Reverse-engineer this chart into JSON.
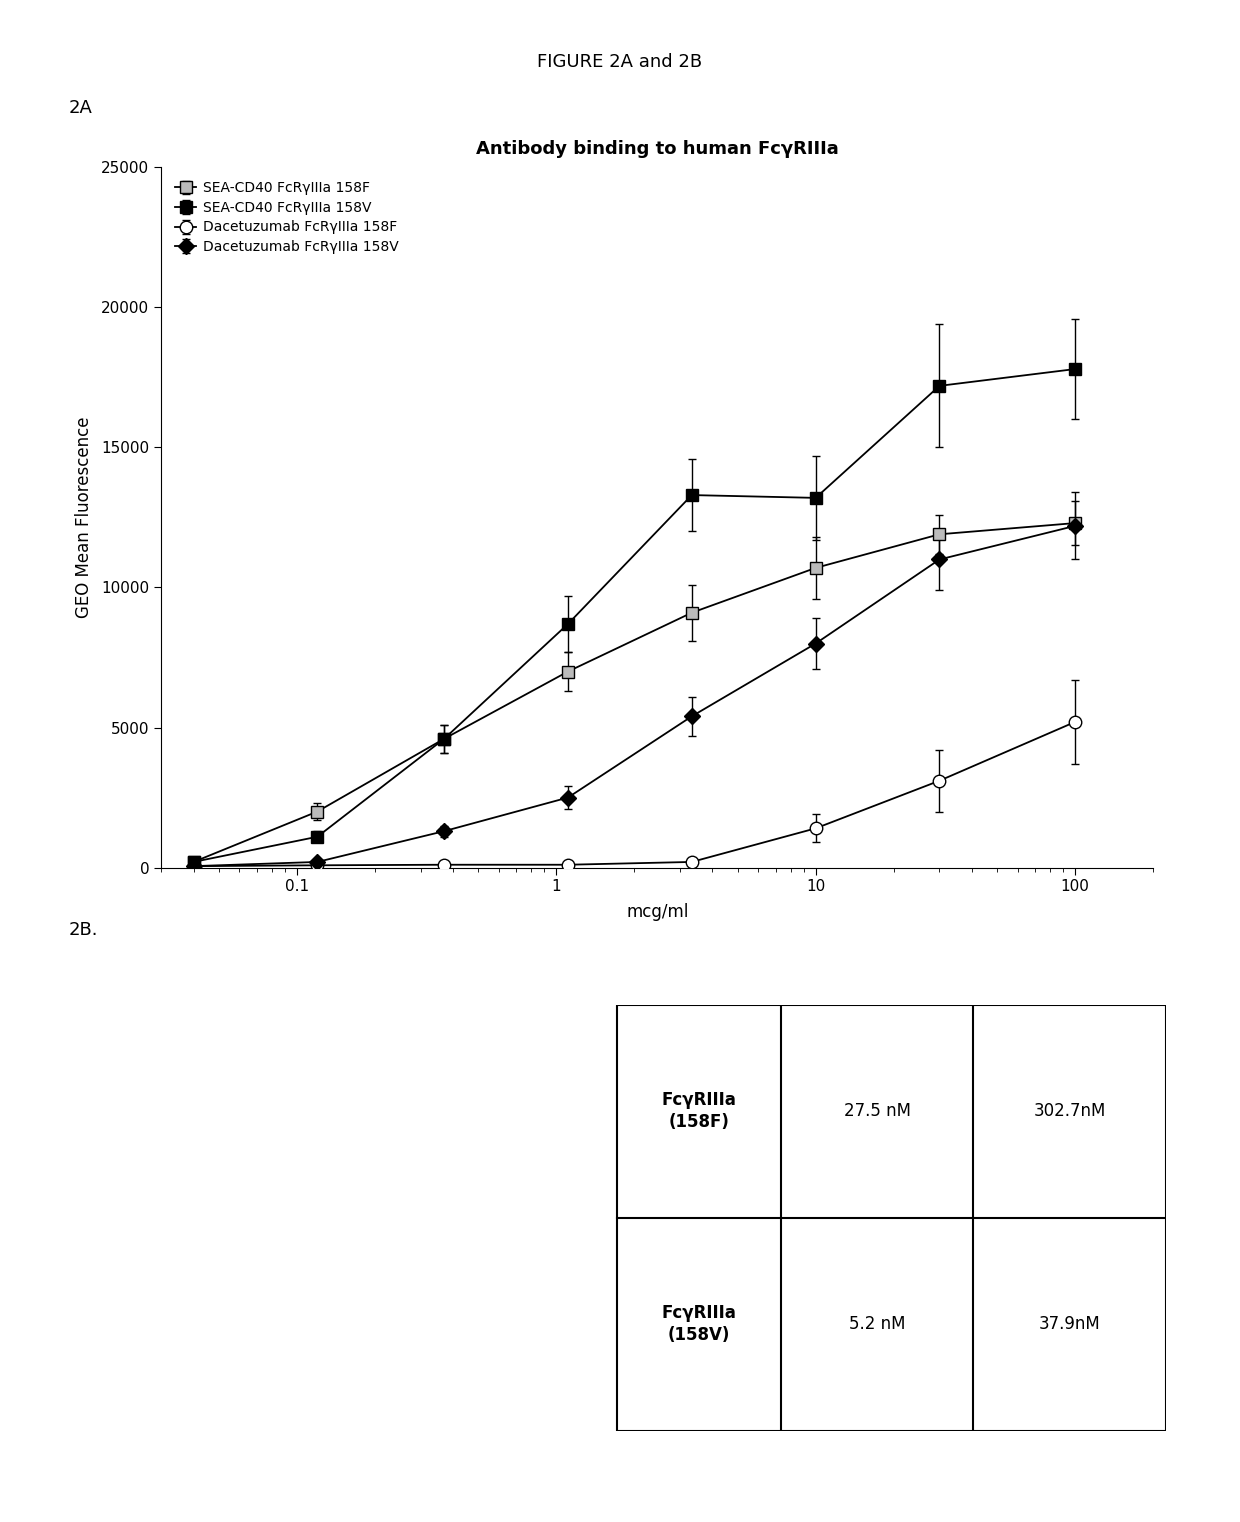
{
  "figure_title": "FIGURE 2A and 2B",
  "panel_2a_label": "2A",
  "panel_2b_label": "2B.",
  "chart_title": "Antibody binding to human FcγRIIIa",
  "xlabel": "mcg/ml",
  "ylabel": "GEO Mean Fluorescence",
  "ylim": [
    0,
    25000
  ],
  "yticks": [
    0,
    5000,
    10000,
    15000,
    20000,
    25000
  ],
  "series": [
    {
      "label": "SEA-CD40 FcRγIIIa 158F",
      "x": [
        0.04,
        0.12,
        0.37,
        1.11,
        3.33,
        10,
        30,
        100
      ],
      "y": [
        200,
        2000,
        4600,
        7000,
        9100,
        10700,
        11900,
        12300
      ],
      "yerr": [
        80,
        300,
        500,
        700,
        1000,
        1100,
        700,
        800
      ],
      "marker": "s",
      "markerfacecolor": "#bbbbbb",
      "markeredgecolor": "#000000",
      "markersize": 9,
      "linewidth": 1.3
    },
    {
      "label": "SEA-CD40 FcRγIIIa 158V",
      "x": [
        0.04,
        0.12,
        0.37,
        1.11,
        3.33,
        10,
        30,
        100
      ],
      "y": [
        200,
        1100,
        4600,
        8700,
        13300,
        13200,
        17200,
        17800
      ],
      "yerr": [
        80,
        200,
        500,
        1000,
        1300,
        1500,
        2200,
        1800
      ],
      "marker": "s",
      "markerfacecolor": "#000000",
      "markeredgecolor": "#000000",
      "markersize": 9,
      "linewidth": 1.3
    },
    {
      "label": "Dacetuzumab FcRγIIIa 158F",
      "x": [
        0.04,
        0.12,
        0.37,
        1.11,
        3.33,
        10,
        30,
        100
      ],
      "y": [
        50,
        80,
        100,
        100,
        200,
        1400,
        3100,
        5200
      ],
      "yerr": [
        20,
        30,
        30,
        30,
        80,
        500,
        1100,
        1500
      ],
      "marker": "o",
      "markerfacecolor": "#ffffff",
      "markeredgecolor": "#000000",
      "markersize": 9,
      "linewidth": 1.3
    },
    {
      "label": "Dacetuzumab FcRγIIIa 158V",
      "x": [
        0.04,
        0.12,
        0.37,
        1.11,
        3.33,
        10,
        30,
        100
      ],
      "y": [
        50,
        200,
        1300,
        2500,
        5400,
        8000,
        11000,
        12200
      ],
      "yerr": [
        20,
        80,
        200,
        400,
        700,
        900,
        1100,
        1200
      ],
      "marker": "D",
      "markerfacecolor": "#000000",
      "markeredgecolor": "#000000",
      "markersize": 8,
      "linewidth": 1.3
    }
  ],
  "legend_labels": [
    "SEA-CD40 FcRγIIIa 158F",
    "SEA-CD40 FcRγIIIa 158V",
    "Dacetuzumab FcRγIIIa 158F",
    "Dacetuzumab FcRγIIIa 158V"
  ],
  "table_row1_label": "FcγRIIIa\n(158F)",
  "table_row2_label": "FcγRIIIa\n(158V)",
  "table_col1_val1": "27.5 nM",
  "table_col2_val1": "302.7nM",
  "table_col1_val2": "5.2 nM",
  "table_col2_val2": "37.9nM",
  "background_color": "#ffffff"
}
